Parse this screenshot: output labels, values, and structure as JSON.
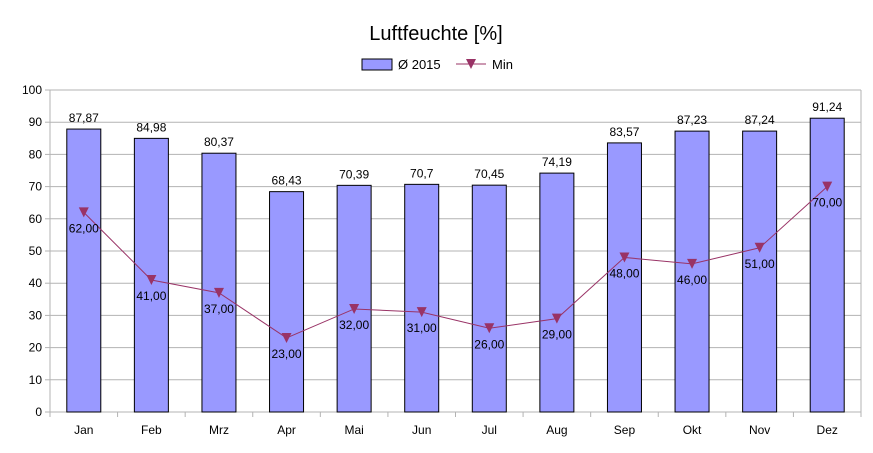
{
  "chart_data": {
    "type": "bar",
    "title": "Luftfeuchte [%]",
    "xlabel": "",
    "ylabel": "",
    "categories": [
      "Jan",
      "Feb",
      "Mrz",
      "Apr",
      "Mai",
      "Jun",
      "Jul",
      "Aug",
      "Sep",
      "Okt",
      "Nov",
      "Dez"
    ],
    "ylim": [
      0,
      100
    ],
    "yticks": [
      0,
      10,
      20,
      30,
      40,
      50,
      60,
      70,
      80,
      90,
      100
    ],
    "grid": true,
    "legend": "top",
    "series": [
      {
        "name": "Ø 2015",
        "kind": "bar",
        "color": "#9999ff",
        "values": [
          87.87,
          84.98,
          80.37,
          68.43,
          70.39,
          70.7,
          70.45,
          74.19,
          83.57,
          87.23,
          87.24,
          91.24
        ],
        "labels": [
          "87,87",
          "84,98",
          "80,37",
          "68,43",
          "70,39",
          "70,7",
          "70,45",
          "74,19",
          "83,57",
          "87,23",
          "87,24",
          "91,24"
        ]
      },
      {
        "name": "Min",
        "kind": "line",
        "color": "#993366",
        "marker": "triangle-down",
        "values": [
          62,
          41,
          37,
          23,
          32,
          31,
          26,
          29,
          48,
          46,
          51,
          70
        ],
        "labels": [
          "62,00",
          "41,00",
          "37,00",
          "23,00",
          "32,00",
          "31,00",
          "26,00",
          "29,00",
          "48,00",
          "46,00",
          "51,00",
          "70,00"
        ]
      }
    ]
  }
}
